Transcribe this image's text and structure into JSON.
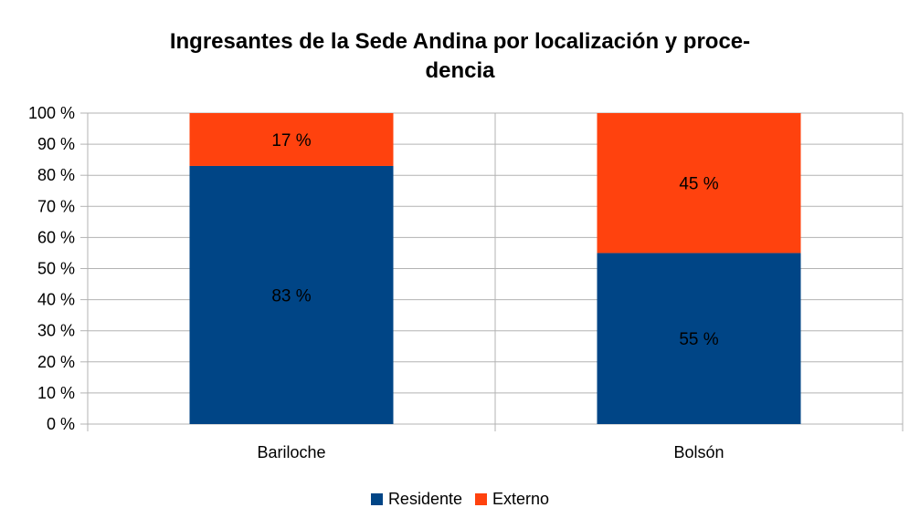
{
  "chart_data": {
    "type": "bar",
    "stacked": true,
    "title_lines": [
      "Ingresantes de la Sede Andina por localización y proce-",
      "dencia"
    ],
    "categories": [
      "Bariloche",
      "Bolsón"
    ],
    "series": [
      {
        "name": "Residente",
        "values": [
          83,
          55
        ],
        "labels": [
          "83 %",
          "55 %"
        ],
        "color": "#004586"
      },
      {
        "name": "Externo",
        "values": [
          17,
          45
        ],
        "labels": [
          "17 %",
          "45 %"
        ],
        "color": "#ff420e"
      }
    ],
    "ylim": [
      0,
      100
    ],
    "yticks": [
      0,
      10,
      20,
      30,
      40,
      50,
      60,
      70,
      80,
      90,
      100
    ],
    "ytick_labels": [
      "0 %",
      "10 %",
      "20 %",
      "30 %",
      "40 %",
      "50 %",
      "60 %",
      "70 %",
      "80 %",
      "90 %",
      "100 %"
    ],
    "grid": true,
    "legend_position": "bottom"
  }
}
